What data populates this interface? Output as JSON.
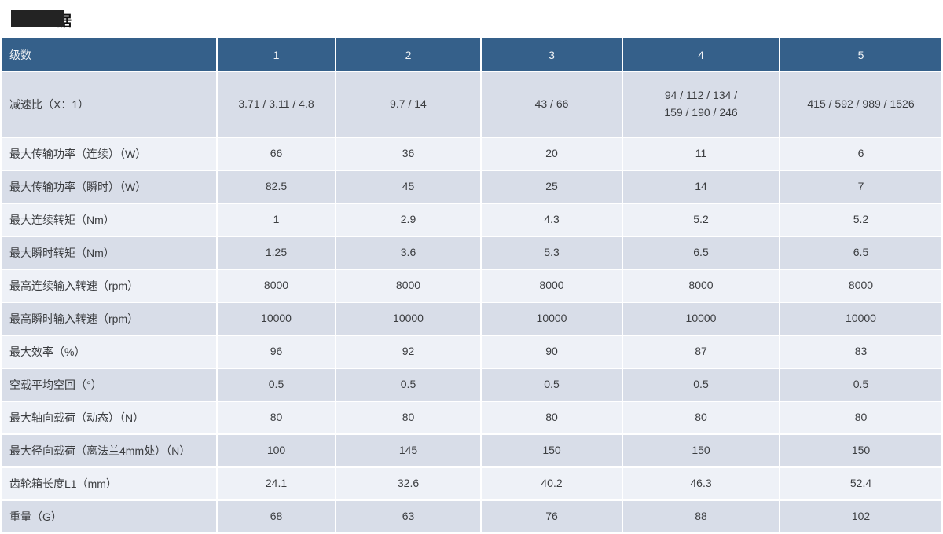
{
  "title": {
    "visible_char": "据",
    "redacted": true
  },
  "colors": {
    "header_bg": "#35608a",
    "header_text": "#f2f4f6",
    "row_dark": "#d8dde8",
    "row_light": "#eef1f7",
    "cell_text": "#3b3d40",
    "page_bg": "#ffffff",
    "redaction": "#232323"
  },
  "table": {
    "columns": [
      "级数",
      "1",
      "2",
      "3",
      "4",
      "5"
    ],
    "rows": [
      {
        "label": "减速比（X：1）",
        "values": [
          "3.71 / 3.11 / 4.8",
          "9.7 / 14",
          "43 / 66",
          "94 / 112 / 134 /\n159 / 190 / 246",
          "415 / 592 / 989 / 1526"
        ]
      },
      {
        "label": "最大传输功率（连续）（W）",
        "values": [
          "66",
          "36",
          "20",
          "11",
          "6"
        ]
      },
      {
        "label": "最大传输功率（瞬时）（W）",
        "values": [
          "82.5",
          "45",
          "25",
          "14",
          "7"
        ]
      },
      {
        "label": "最大连续转矩（Nm）",
        "values": [
          "1",
          "2.9",
          "4.3",
          "5.2",
          "5.2"
        ]
      },
      {
        "label": "最大瞬时转矩（Nm）",
        "values": [
          "1.25",
          "3.6",
          "5.3",
          "6.5",
          "6.5"
        ]
      },
      {
        "label": "最高连续输入转速（rpm）",
        "values": [
          "8000",
          "8000",
          "8000",
          "8000",
          "8000"
        ]
      },
      {
        "label": "最高瞬时输入转速（rpm）",
        "values": [
          "10000",
          "10000",
          "10000",
          "10000",
          "10000"
        ]
      },
      {
        "label": "最大效率（%）",
        "values": [
          "96",
          "92",
          "90",
          "87",
          "83"
        ]
      },
      {
        "label": "空载平均空回（°）",
        "values": [
          "0.5",
          "0.5",
          "0.5",
          "0.5",
          "0.5"
        ]
      },
      {
        "label": "最大轴向载荷（动态）（N）",
        "values": [
          "80",
          "80",
          "80",
          "80",
          "80"
        ]
      },
      {
        "label": "最大径向载荷（离法兰4mm处）（N）",
        "values": [
          "100",
          "145",
          "150",
          "150",
          "150"
        ]
      },
      {
        "label": "齿轮箱长度L1（mm）",
        "values": [
          "24.1",
          "32.6",
          "40.2",
          "46.3",
          "52.4"
        ]
      },
      {
        "label": "重量（G）",
        "values": [
          "68",
          "63",
          "76",
          "88",
          "102"
        ]
      }
    ]
  }
}
